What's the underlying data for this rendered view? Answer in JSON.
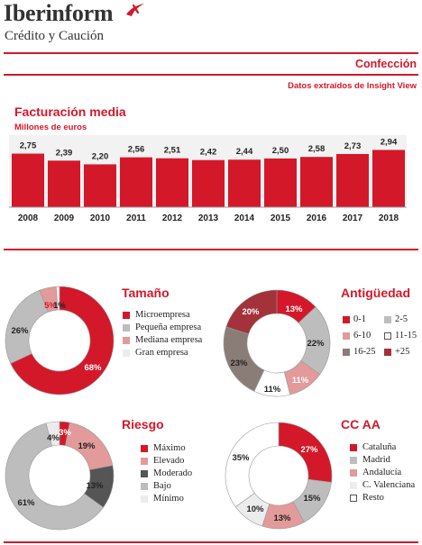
{
  "brand": {
    "name": "Iberinform",
    "subtitle": "Crédito y Caución"
  },
  "colors": {
    "accent": "#d3182a",
    "text": "#222222"
  },
  "header": {
    "title": "Confección",
    "source": "Datos extraídos de Insight View"
  },
  "chart_data": [
    {
      "type": "bar",
      "title": "Facturación media",
      "ylabel": "Millones de euros",
      "categories": [
        "2008",
        "2009",
        "2010",
        "2011",
        "2012",
        "2013",
        "2014",
        "2015",
        "2016",
        "2017",
        "2018"
      ],
      "values": [
        2.75,
        2.39,
        2.2,
        2.56,
        2.51,
        2.42,
        2.44,
        2.5,
        2.58,
        2.73,
        2.94
      ],
      "value_labels": [
        "2,75",
        "2,39",
        "2,20",
        "2,56",
        "2,51",
        "2,42",
        "2,44",
        "2,50",
        "2,58",
        "2,73",
        "2,94"
      ],
      "grid": false
    },
    {
      "type": "pie",
      "title": "Tamaño",
      "categories": [
        "Microempresa",
        "Pequeña empresa",
        "Mediana empresa",
        "Gran empresa"
      ],
      "values": [
        68,
        26,
        5,
        1
      ],
      "slice_labels": [
        "68%",
        "26%",
        "5%",
        "1%"
      ],
      "colors": [
        "#d3182a",
        "#bdbdbd",
        "#e39a9a",
        "#ececec"
      ]
    },
    {
      "type": "pie",
      "title": "Antigüedad",
      "categories": [
        "0-1",
        "2-5",
        "6-10",
        "11-15",
        "16-25",
        "+25"
      ],
      "values": [
        13,
        22,
        11,
        11,
        23,
        20
      ],
      "slice_labels": [
        "13%",
        "22%",
        "11%",
        "11%",
        "23%",
        "20%"
      ],
      "colors": [
        "#d3182a",
        "#bdbdbd",
        "#e39a9a",
        "#ffffff",
        "#8a7d78",
        "#a3323a"
      ]
    },
    {
      "type": "pie",
      "title": "Riesgo",
      "categories": [
        "Máximo",
        "Elevado",
        "Moderado",
        "Bajo",
        "Mínimo"
      ],
      "values": [
        3,
        19,
        13,
        61,
        4
      ],
      "slice_labels": [
        "3%",
        "19%",
        "13%",
        "61%",
        "4%"
      ],
      "colors": [
        "#d3182a",
        "#e39a9a",
        "#555555",
        "#bdbdbd",
        "#ececec"
      ]
    },
    {
      "type": "pie",
      "title": "CC AA",
      "categories": [
        "Cataluña",
        "Madrid",
        "Andalucía",
        "C. Valenciana",
        "Resto"
      ],
      "values": [
        27,
        15,
        13,
        10,
        35
      ],
      "slice_labels": [
        "27%",
        "15%",
        "13%",
        "10%",
        "35%"
      ],
      "colors": [
        "#d3182a",
        "#bdbdbd",
        "#e39a9a",
        "#ececec",
        "#ffffff"
      ]
    }
  ]
}
